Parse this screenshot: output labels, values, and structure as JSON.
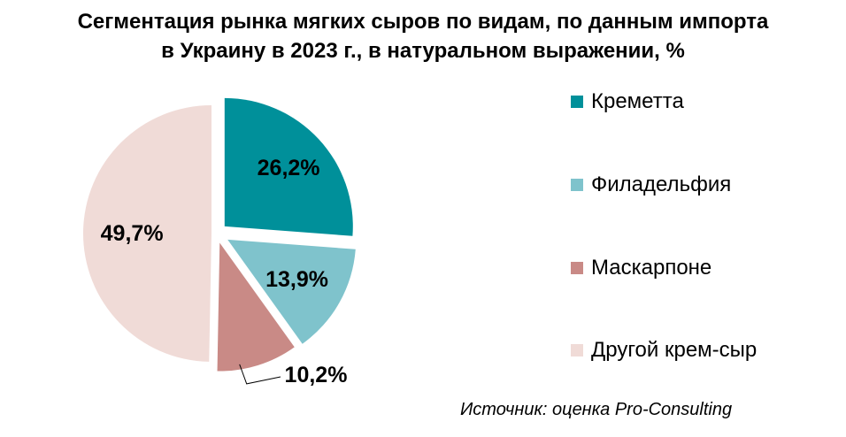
{
  "title": {
    "line1": "Сегментация рынка мягких сыров по видам, по данным импорта",
    "line2": "в Украину в 2023 г., в натуральном выражении, %"
  },
  "chart_data": {
    "type": "pie",
    "categories": [
      "Креметта",
      "Филадельфия",
      "Маскарпоне",
      "Другой крем-сыр"
    ],
    "values": [
      26.2,
      13.9,
      10.2,
      49.7
    ],
    "data_labels": [
      "26,2%",
      "13,9%",
      "10,2%",
      "49,7%"
    ],
    "colors": [
      "#00909a",
      "#7fc3cc",
      "#c98a86",
      "#f0dbd7"
    ],
    "unit": "%",
    "legend_position": "right",
    "exploded": true
  },
  "legend": {
    "items": [
      {
        "label": "Креметта",
        "color": "#00909a"
      },
      {
        "label": "Филадельфия",
        "color": "#7fc3cc"
      },
      {
        "label": "Маскарпоне",
        "color": "#c98a86"
      },
      {
        "label": "Другой крем-сыр",
        "color": "#f0dbd7"
      }
    ]
  },
  "source": "Источник: оценка Pro-Consulting"
}
